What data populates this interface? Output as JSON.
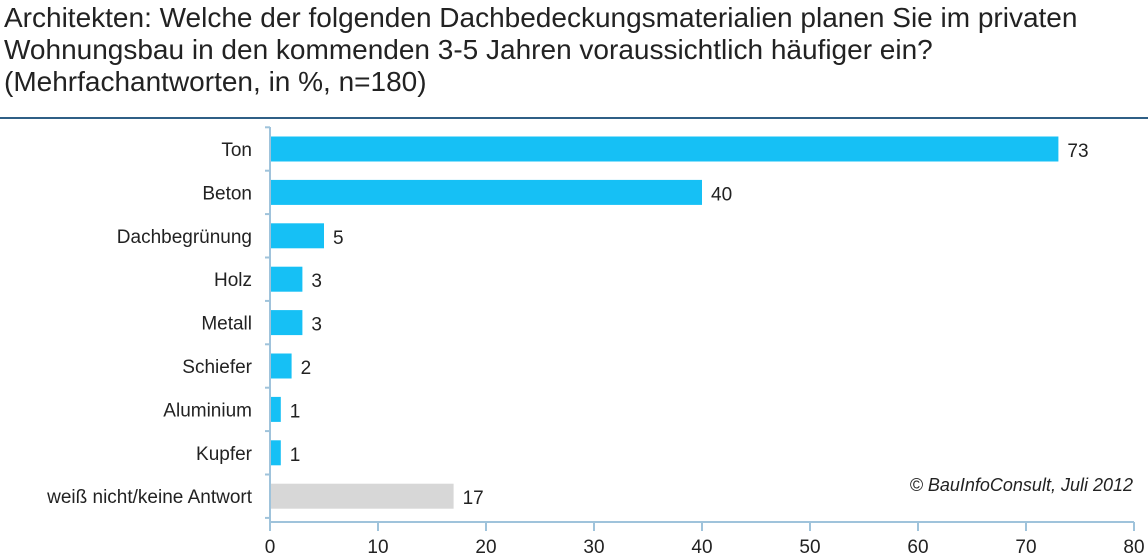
{
  "chart_data": {
    "type": "bar",
    "orientation": "horizontal",
    "title": "Architekten: Welche der folgenden Dachbedeckungsmaterialien planen Sie im privaten Wohnungsbau in den kommenden 3-5 Jahren voraussichtlich häufiger ein? (Mehrfachantworten, in %, n=180)",
    "categories": [
      "Ton",
      "Beton",
      "Dachbegrünung",
      "Holz",
      "Metall",
      "Schiefer",
      "Aluminium",
      "Kupfer",
      "weiß nicht/keine Antwort"
    ],
    "values": [
      73,
      40,
      5,
      3,
      3,
      2,
      1,
      1,
      17
    ],
    "value_labels": [
      "73",
      "40",
      "5",
      "3",
      "3",
      "2",
      "1",
      "1",
      "17"
    ],
    "colors": [
      "#16c0f5",
      "#16c0f5",
      "#16c0f5",
      "#16c0f5",
      "#16c0f5",
      "#16c0f5",
      "#16c0f5",
      "#16c0f5",
      "#d7d7d7"
    ],
    "xlim": [
      0,
      80
    ],
    "xticks": [
      0,
      10,
      20,
      30,
      40,
      50,
      60,
      70,
      80
    ],
    "xtick_labels": [
      "0",
      "10",
      "20",
      "30",
      "40",
      "50",
      "60",
      "70",
      "80"
    ],
    "grid": false,
    "credit": "© BauInfoConsult, Juli 2012"
  },
  "style": {
    "rule_color": "#2f5f86",
    "axis_color": "#9fc3db"
  }
}
